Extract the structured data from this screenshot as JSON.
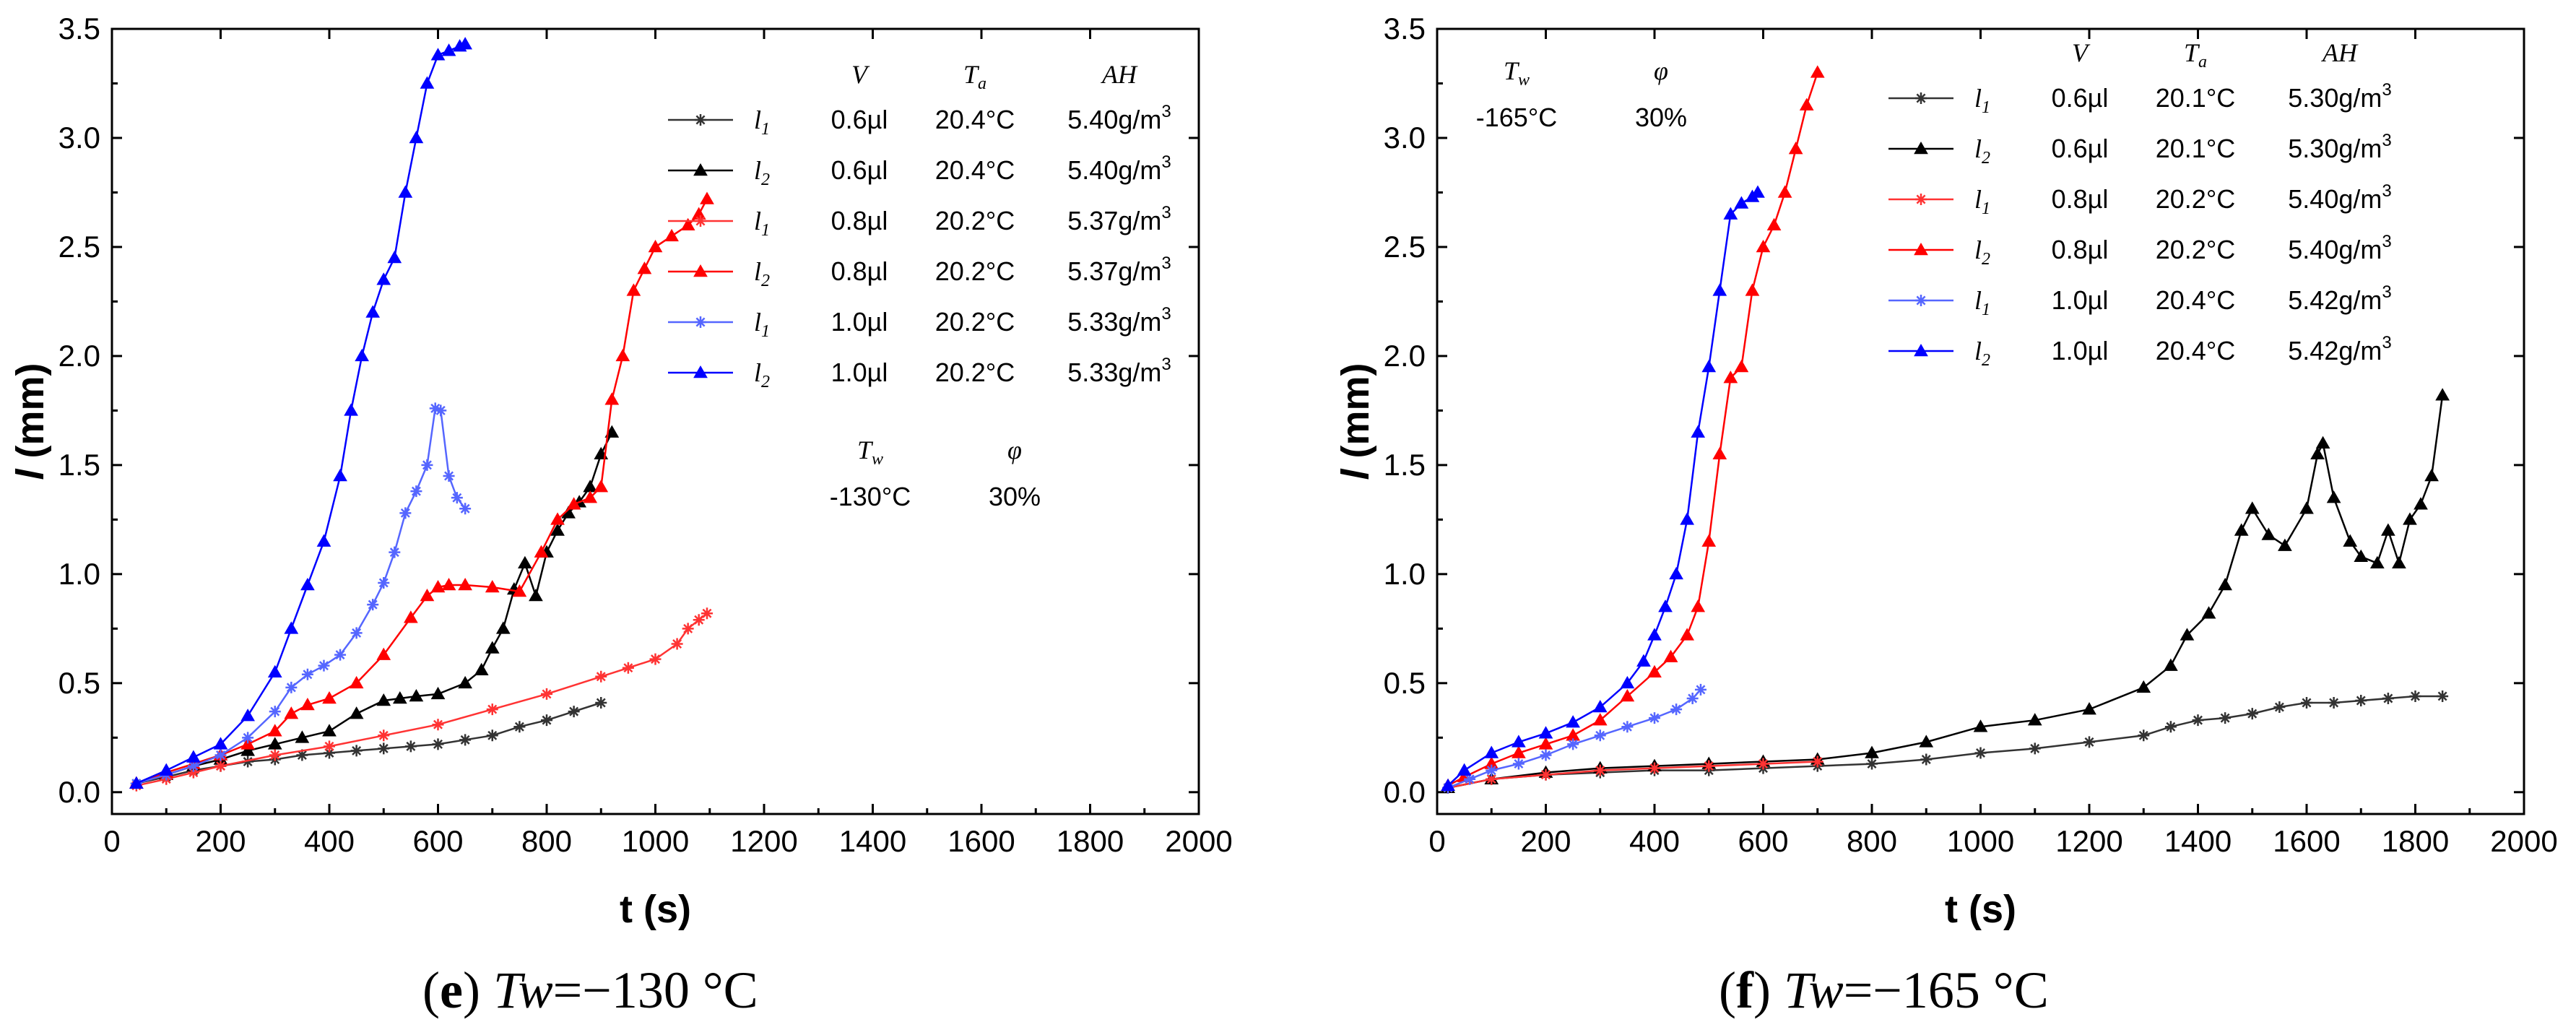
{
  "chart_data": [
    {
      "type": "line",
      "panel_id": "e",
      "caption": {
        "letter": "e",
        "var": "Tw",
        "value": "=−130 °C"
      },
      "xlabel": "t (s)",
      "ylabel": "l (mm)",
      "xlim": [
        0,
        2000
      ],
      "ylim": [
        -0.1,
        3.5
      ],
      "xticks": [
        0,
        200,
        400,
        600,
        800,
        1000,
        1200,
        1400,
        1600,
        1800,
        2000
      ],
      "xtick_labels": [
        "0",
        "200",
        "400",
        "600",
        "800",
        "1000",
        "1200",
        "1400",
        "1600",
        "1800",
        "2000"
      ],
      "yticks": [
        0,
        0.5,
        1,
        1.5,
        2,
        2.5,
        3,
        3.5
      ],
      "ytick_labels": [
        "0.0",
        "0.5",
        "1.0",
        "1.5",
        "2.0",
        "2.5",
        "3.0",
        "3.5"
      ],
      "legend_headers": {
        "v": "V",
        "ta": "T",
        "ta_sub": "a",
        "ah": "AH"
      },
      "conditions": {
        "tw_label": "T",
        "tw_sub": "w",
        "phi_label": "φ",
        "tw_value": "-130°C",
        "phi_value": "30%"
      },
      "series": [
        {
          "name": "l1 0.6µl",
          "l": "l",
          "sub": "1",
          "v": "0.6µl",
          "ta": "20.4°C",
          "ah": "5.40g/m",
          "ah_sup": "3",
          "color": "#333333",
          "marker": "star",
          "x": [
            45,
            100,
            150,
            200,
            250,
            300,
            350,
            400,
            450,
            500,
            550,
            600,
            650,
            700,
            750,
            800,
            850,
            900
          ],
          "y": [
            0.04,
            0.07,
            0.1,
            0.12,
            0.14,
            0.15,
            0.17,
            0.18,
            0.19,
            0.2,
            0.21,
            0.22,
            0.24,
            0.26,
            0.3,
            0.33,
            0.37,
            0.41
          ]
        },
        {
          "name": "l2 0.6µl",
          "l": "l",
          "sub": "2",
          "v": "0.6µl",
          "ta": "20.4°C",
          "ah": "5.40g/m",
          "ah_sup": "3",
          "color": "#000000",
          "marker": "triangle",
          "x": [
            45,
            100,
            150,
            200,
            250,
            300,
            350,
            400,
            450,
            500,
            530,
            560,
            600,
            650,
            680,
            700,
            720,
            740,
            760,
            780,
            800,
            820,
            840,
            860,
            880,
            900,
            920
          ],
          "y": [
            0.04,
            0.08,
            0.12,
            0.15,
            0.19,
            0.22,
            0.25,
            0.28,
            0.36,
            0.42,
            0.43,
            0.44,
            0.45,
            0.5,
            0.56,
            0.66,
            0.75,
            0.93,
            1.05,
            0.9,
            1.1,
            1.2,
            1.28,
            1.33,
            1.4,
            1.55,
            1.65
          ]
        },
        {
          "name": "l1 0.8µl",
          "l": "l",
          "sub": "1",
          "v": "0.8µl",
          "ta": "20.2°C",
          "ah": "5.37g/m",
          "ah_sup": "3",
          "color": "#ff3333",
          "marker": "star",
          "x": [
            45,
            100,
            150,
            200,
            300,
            400,
            500,
            600,
            700,
            800,
            900,
            950,
            1000,
            1040,
            1060,
            1080,
            1095
          ],
          "y": [
            0.03,
            0.06,
            0.09,
            0.12,
            0.17,
            0.21,
            0.26,
            0.31,
            0.38,
            0.45,
            0.53,
            0.57,
            0.61,
            0.68,
            0.75,
            0.79,
            0.82
          ]
        },
        {
          "name": "l2 0.8µl",
          "l": "l",
          "sub": "2",
          "v": "0.8µl",
          "ta": "20.2°C",
          "ah": "5.37g/m",
          "ah_sup": "3",
          "color": "#ff0000",
          "marker": "triangle",
          "x": [
            45,
            100,
            150,
            200,
            250,
            300,
            330,
            360,
            400,
            450,
            500,
            550,
            580,
            600,
            620,
            650,
            700,
            750,
            790,
            820,
            850,
            880,
            900,
            920,
            940,
            960,
            980,
            1000,
            1030,
            1060,
            1080,
            1095
          ],
          "y": [
            0.04,
            0.09,
            0.13,
            0.17,
            0.22,
            0.28,
            0.36,
            0.4,
            0.43,
            0.5,
            0.63,
            0.8,
            0.9,
            0.94,
            0.95,
            0.95,
            0.94,
            0.92,
            1.1,
            1.25,
            1.32,
            1.35,
            1.4,
            1.8,
            2.0,
            2.3,
            2.4,
            2.5,
            2.55,
            2.6,
            2.65,
            2.72
          ]
        },
        {
          "name": "l1 1.0µl",
          "l": "l",
          "sub": "1",
          "v": "1.0µl",
          "ta": "20.2°C",
          "ah": "5.33g/m",
          "ah_sup": "3",
          "color": "#5566ff",
          "marker": "star",
          "x": [
            45,
            100,
            150,
            200,
            250,
            300,
            330,
            360,
            390,
            420,
            450,
            480,
            500,
            520,
            540,
            560,
            580,
            595,
            605,
            620,
            635,
            650
          ],
          "y": [
            0.04,
            0.08,
            0.12,
            0.17,
            0.25,
            0.37,
            0.48,
            0.54,
            0.58,
            0.63,
            0.73,
            0.86,
            0.96,
            1.1,
            1.28,
            1.38,
            1.5,
            1.76,
            1.75,
            1.45,
            1.35,
            1.3
          ]
        },
        {
          "name": "l2 1.0µl",
          "l": "l",
          "sub": "2",
          "v": "1.0µl",
          "ta": "20.2°C",
          "ah": "5.33g/m",
          "ah_sup": "3",
          "color": "#0000ff",
          "marker": "triangle",
          "x": [
            45,
            100,
            150,
            200,
            250,
            300,
            330,
            360,
            390,
            420,
            440,
            460,
            480,
            500,
            520,
            540,
            560,
            580,
            600,
            620,
            640,
            650
          ],
          "y": [
            0.04,
            0.1,
            0.16,
            0.22,
            0.35,
            0.55,
            0.75,
            0.95,
            1.15,
            1.45,
            1.75,
            2.0,
            2.2,
            2.35,
            2.45,
            2.75,
            3.0,
            3.25,
            3.38,
            3.4,
            3.42,
            3.43
          ]
        }
      ]
    },
    {
      "type": "line",
      "panel_id": "f",
      "caption": {
        "letter": "f",
        "var": "Tw",
        "value": "=−165 °C"
      },
      "xlabel": "t (s)",
      "ylabel": "l (mm)",
      "xlim": [
        0,
        2000
      ],
      "ylim": [
        -0.1,
        3.5
      ],
      "xticks": [
        0,
        200,
        400,
        600,
        800,
        1000,
        1200,
        1400,
        1600,
        1800,
        2000
      ],
      "xtick_labels": [
        "0",
        "200",
        "400",
        "600",
        "800",
        "1000",
        "1200",
        "1400",
        "1600",
        "1800",
        "2000"
      ],
      "yticks": [
        0,
        0.5,
        1,
        1.5,
        2,
        2.5,
        3,
        3.5
      ],
      "ytick_labels": [
        "0.0",
        "0.5",
        "1.0",
        "1.5",
        "2.0",
        "2.5",
        "3.0",
        "3.5"
      ],
      "legend_headers": {
        "v": "V",
        "ta": "T",
        "ta_sub": "a",
        "ah": "AH"
      },
      "conditions": {
        "tw_label": "T",
        "tw_sub": "w",
        "phi_label": "φ",
        "tw_value": "-165°C",
        "phi_value": "30%"
      },
      "series": [
        {
          "name": "l1 0.6µl",
          "l": "l",
          "sub": "1",
          "v": "0.6µl",
          "ta": "20.1°C",
          "ah": "5.30g/m",
          "ah_sup": "3",
          "color": "#333333",
          "marker": "star",
          "x": [
            20,
            100,
            200,
            300,
            400,
            500,
            600,
            700,
            800,
            900,
            1000,
            1100,
            1200,
            1300,
            1350,
            1400,
            1450,
            1500,
            1550,
            1600,
            1650,
            1700,
            1750,
            1800,
            1850
          ],
          "y": [
            0.02,
            0.06,
            0.08,
            0.09,
            0.1,
            0.1,
            0.11,
            0.12,
            0.13,
            0.15,
            0.18,
            0.2,
            0.23,
            0.26,
            0.3,
            0.33,
            0.34,
            0.36,
            0.39,
            0.41,
            0.41,
            0.42,
            0.43,
            0.44,
            0.44
          ]
        },
        {
          "name": "l2 0.6µl",
          "l": "l",
          "sub": "2",
          "v": "0.6µl",
          "ta": "20.1°C",
          "ah": "5.30g/m",
          "ah_sup": "3",
          "color": "#000000",
          "marker": "triangle",
          "x": [
            20,
            100,
            200,
            300,
            400,
            500,
            600,
            700,
            800,
            900,
            1000,
            1100,
            1200,
            1300,
            1350,
            1380,
            1420,
            1450,
            1480,
            1500,
            1530,
            1560,
            1600,
            1620,
            1630,
            1650,
            1680,
            1700,
            1730,
            1750,
            1770,
            1790,
            1810,
            1830,
            1850
          ],
          "y": [
            0.02,
            0.06,
            0.09,
            0.11,
            0.12,
            0.13,
            0.14,
            0.15,
            0.18,
            0.23,
            0.3,
            0.33,
            0.38,
            0.48,
            0.58,
            0.72,
            0.82,
            0.95,
            1.2,
            1.3,
            1.18,
            1.13,
            1.3,
            1.55,
            1.6,
            1.35,
            1.15,
            1.08,
            1.05,
            1.2,
            1.05,
            1.25,
            1.32,
            1.45,
            1.82
          ]
        },
        {
          "name": "l1 0.8µl",
          "l": "l",
          "sub": "1",
          "v": "0.8µl",
          "ta": "20.2°C",
          "ah": "5.40g/m",
          "ah_sup": "3",
          "color": "#ff3333",
          "marker": "star",
          "x": [
            20,
            100,
            200,
            300,
            400,
            500,
            600,
            700
          ],
          "y": [
            0.02,
            0.06,
            0.08,
            0.1,
            0.11,
            0.12,
            0.13,
            0.14
          ]
        },
        {
          "name": "l2 0.8µl",
          "l": "l",
          "sub": "2",
          "v": "0.8µl",
          "ta": "20.2°C",
          "ah": "5.40g/m",
          "ah_sup": "3",
          "color": "#ff0000",
          "marker": "triangle",
          "x": [
            20,
            50,
            100,
            150,
            200,
            250,
            300,
            350,
            400,
            430,
            460,
            480,
            500,
            520,
            540,
            560,
            580,
            600,
            620,
            640,
            660,
            680,
            700
          ],
          "y": [
            0.03,
            0.07,
            0.13,
            0.18,
            0.22,
            0.26,
            0.33,
            0.44,
            0.55,
            0.62,
            0.72,
            0.85,
            1.15,
            1.55,
            1.9,
            1.95,
            2.3,
            2.5,
            2.6,
            2.75,
            2.95,
            3.15,
            3.3
          ]
        },
        {
          "name": "l1 1.0µl",
          "l": "l",
          "sub": "1",
          "v": "1.0µl",
          "ta": "20.4°C",
          "ah": "5.42g/m",
          "ah_sup": "3",
          "color": "#5566ff",
          "marker": "star",
          "x": [
            20,
            60,
            100,
            150,
            200,
            250,
            300,
            350,
            400,
            440,
            470,
            485
          ],
          "y": [
            0.02,
            0.06,
            0.1,
            0.13,
            0.17,
            0.22,
            0.26,
            0.3,
            0.34,
            0.38,
            0.43,
            0.47
          ]
        },
        {
          "name": "l2 1.0µl",
          "l": "l",
          "sub": "2",
          "v": "1.0µl",
          "ta": "20.4°C",
          "ah": "5.42g/m",
          "ah_sup": "3",
          "color": "#0000ff",
          "marker": "triangle",
          "x": [
            20,
            50,
            100,
            150,
            200,
            250,
            300,
            350,
            380,
            400,
            420,
            440,
            460,
            480,
            500,
            520,
            540,
            560,
            580,
            590
          ],
          "y": [
            0.03,
            0.1,
            0.18,
            0.23,
            0.27,
            0.32,
            0.39,
            0.5,
            0.6,
            0.72,
            0.85,
            1.0,
            1.25,
            1.65,
            1.95,
            2.3,
            2.65,
            2.7,
            2.73,
            2.75
          ]
        }
      ]
    }
  ]
}
